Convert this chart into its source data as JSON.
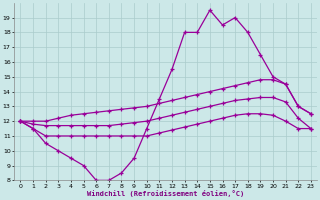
{
  "xlabel": "Windchill (Refroidissement éolien,°C)",
  "x_values": [
    0,
    1,
    2,
    3,
    4,
    5,
    6,
    7,
    8,
    9,
    10,
    11,
    12,
    13,
    14,
    15,
    16,
    17,
    18,
    19,
    20,
    21,
    22,
    23
  ],
  "line1_y": [
    12.0,
    11.5,
    10.5,
    10.0,
    9.5,
    9.0,
    8.0,
    8.0,
    8.5,
    9.5,
    11.5,
    13.5,
    15.5,
    18.0,
    18.0,
    19.5,
    18.5,
    19.0,
    18.0,
    16.5,
    15.0,
    14.5,
    13.0,
    12.5
  ],
  "line2_y": [
    12.0,
    12.0,
    12.0,
    12.2,
    12.4,
    12.5,
    12.6,
    12.7,
    12.8,
    12.9,
    13.0,
    13.2,
    13.4,
    13.6,
    13.8,
    14.0,
    14.2,
    14.4,
    14.6,
    14.8,
    14.8,
    14.5,
    13.0,
    12.5
  ],
  "line3_y": [
    12.0,
    11.8,
    11.7,
    11.7,
    11.7,
    11.7,
    11.7,
    11.7,
    11.8,
    11.9,
    12.0,
    12.2,
    12.4,
    12.6,
    12.8,
    13.0,
    13.2,
    13.4,
    13.5,
    13.6,
    13.6,
    13.3,
    12.2,
    11.5
  ],
  "line4_y": [
    12.0,
    11.5,
    11.0,
    11.0,
    11.0,
    11.0,
    11.0,
    11.0,
    11.0,
    11.0,
    11.0,
    11.2,
    11.4,
    11.6,
    11.8,
    12.0,
    12.2,
    12.4,
    12.5,
    12.5,
    12.4,
    12.0,
    11.5,
    11.5
  ],
  "line_color": "#990099",
  "bg_color": "#cce8e8",
  "grid_color": "#aacccc",
  "ylim": [
    8,
    20
  ],
  "yticks": [
    8,
    9,
    10,
    11,
    12,
    13,
    14,
    15,
    16,
    17,
    18,
    19
  ],
  "xticks": [
    0,
    1,
    2,
    3,
    4,
    5,
    6,
    7,
    8,
    9,
    10,
    11,
    12,
    13,
    14,
    15,
    16,
    17,
    18,
    19,
    20,
    21,
    22,
    23
  ],
  "xlabel_color": "#800080"
}
